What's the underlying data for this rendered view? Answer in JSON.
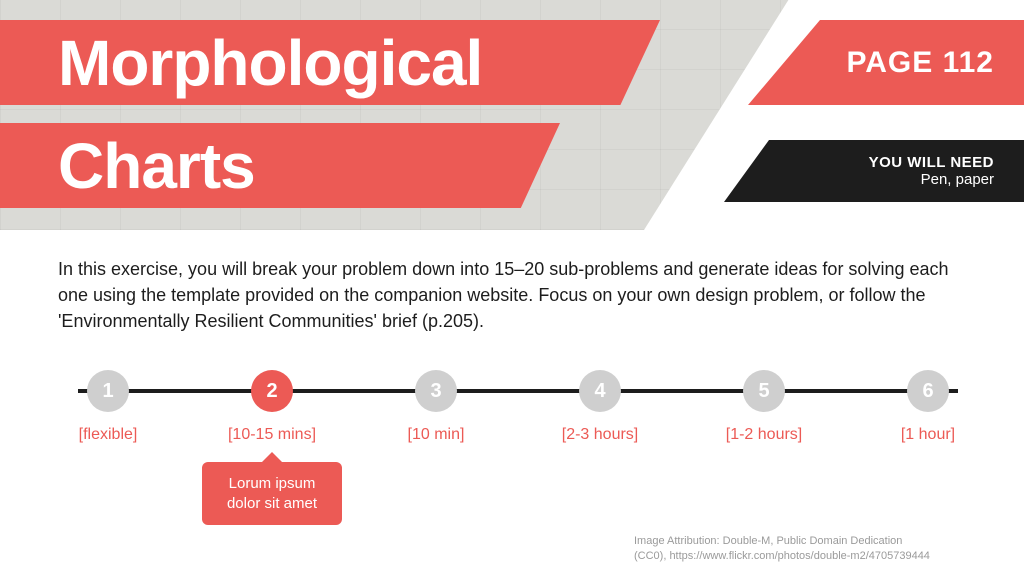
{
  "colors": {
    "accent": "#ec5a55",
    "dark": "#1d1d1d",
    "muted": "#cfcfcf",
    "attrib": "#9a9a9a",
    "bg": "#ffffff"
  },
  "title": {
    "line1": "Morphological",
    "line2": "Charts",
    "fontsize": 64,
    "weight": 800
  },
  "page": {
    "label": "PAGE 112"
  },
  "need": {
    "heading": "YOU WILL NEED",
    "value": "Pen, paper"
  },
  "description": "In this exercise, you will break your problem down into 15–20 sub-problems and generate ideas for solving each one using the template provided on the companion website. Focus on your own design problem, or follow the 'Environmentally Resilient Communities' brief (p.205).",
  "timeline": {
    "active_index": 1,
    "dot_size": 42,
    "track_color": "#1d1d1d",
    "steps": [
      {
        "n": "1",
        "label": "[flexible]"
      },
      {
        "n": "2",
        "label": "[10-15 mins]"
      },
      {
        "n": "3",
        "label": "[10 min]"
      },
      {
        "n": "4",
        "label": "[2-3 hours]"
      },
      {
        "n": "5",
        "label": "[1-2 hours]"
      },
      {
        "n": "6",
        "label": "[1 hour]"
      }
    ],
    "callout": "Lorum ipsum dolor sit amet"
  },
  "attribution": {
    "line1": "Image Attribution: Double-M, Public Domain Dedication",
    "line2": "(CC0), https://www.flickr.com/photos/double-m2/4705739444"
  }
}
